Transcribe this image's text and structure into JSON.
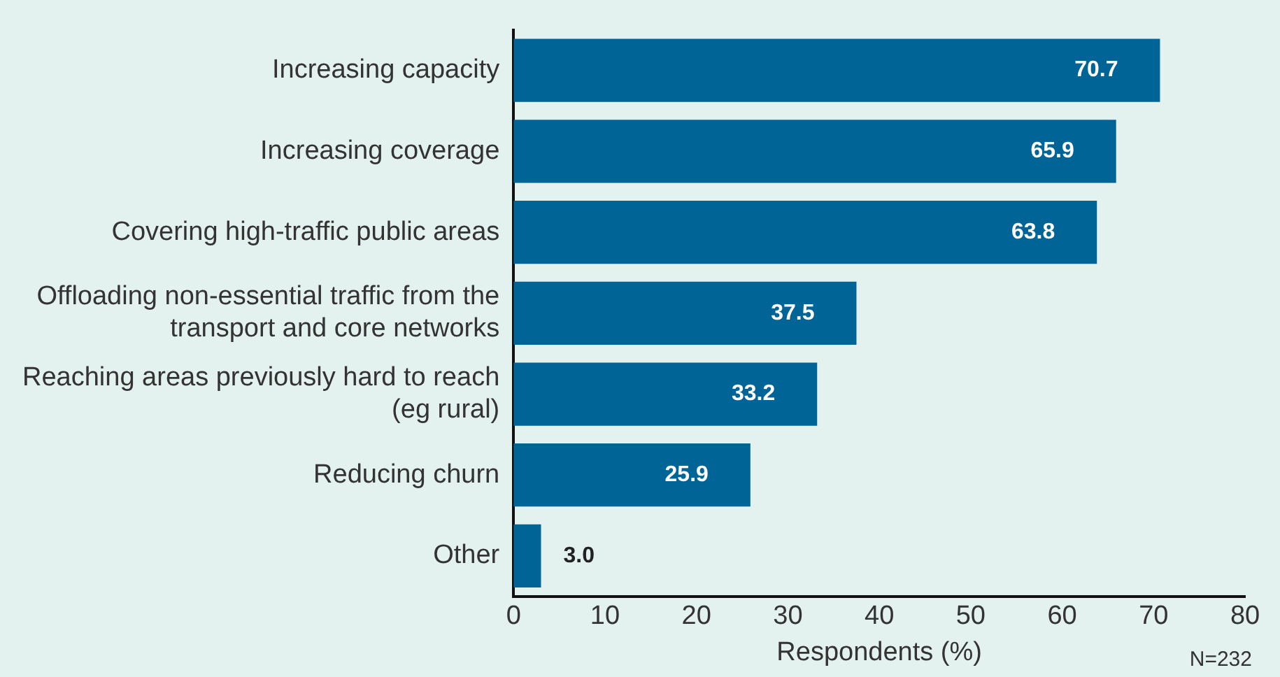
{
  "chart_data": {
    "type": "bar",
    "orientation": "horizontal",
    "categories": [
      "Increasing capacity",
      "Increasing coverage",
      "Covering high-traffic public areas",
      "Offloading non-essential traffic from the transport and core networks",
      "Reaching areas previously hard to reach (eg rural)",
      "Reducing churn",
      "Other"
    ],
    "values": [
      70.7,
      65.9,
      63.8,
      37.5,
      33.2,
      25.9,
      3.0
    ],
    "value_labels": [
      "70.7",
      "65.9",
      "63.8",
      "37.5",
      "33.2",
      "25.9",
      "3.0"
    ],
    "color": "#006496",
    "xlim": [
      0,
      80
    ],
    "xticks": [
      0,
      10,
      20,
      30,
      40,
      50,
      60,
      70,
      80
    ],
    "xlabel": "Respondents (%)",
    "annotations": [
      "N=232"
    ],
    "grid": false,
    "legend": false
  }
}
